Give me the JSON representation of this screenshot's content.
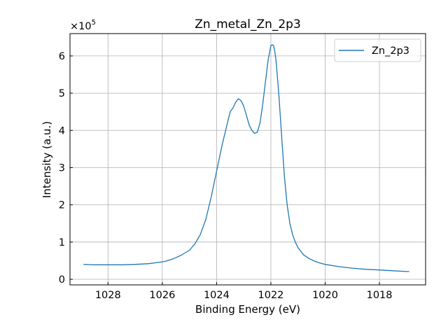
{
  "chart_data": {
    "type": "line",
    "title": "Zn_metal_Zn_2p3",
    "xlabel": "Binding Energy (eV)",
    "ylabel": "Intensity (a.u.)",
    "y_offset_label": "×10",
    "y_offset_exponent": "5",
    "xlim": [
      1029.4,
      1016.3
    ],
    "ylim": [
      -0.15,
      6.6
    ],
    "x_reversed": true,
    "grid": true,
    "legend_position": "top-right",
    "x_ticks": [
      1028,
      1026,
      1024,
      1022,
      1020,
      1018
    ],
    "y_ticks": [
      0,
      1,
      2,
      3,
      4,
      5,
      6
    ],
    "series": [
      {
        "name": "Zn_2p3",
        "color": "#1f77b4",
        "x": [
          1028.9,
          1028.5,
          1028.0,
          1027.5,
          1027.0,
          1026.5,
          1026.2,
          1025.9,
          1025.6,
          1025.3,
          1025.0,
          1024.8,
          1024.6,
          1024.4,
          1024.2,
          1024.0,
          1023.8,
          1023.6,
          1023.5,
          1023.4,
          1023.3,
          1023.2,
          1023.1,
          1023.0,
          1022.9,
          1022.8,
          1022.7,
          1022.6,
          1022.5,
          1022.4,
          1022.3,
          1022.2,
          1022.1,
          1022.0,
          1021.95,
          1021.9,
          1021.85,
          1021.8,
          1021.7,
          1021.6,
          1021.5,
          1021.4,
          1021.3,
          1021.2,
          1021.1,
          1021.0,
          1020.8,
          1020.6,
          1020.4,
          1020.2,
          1020.0,
          1019.5,
          1019.0,
          1018.5,
          1018.0,
          1017.5,
          1017.0,
          1016.9
        ],
        "y": [
          0.4,
          0.39,
          0.39,
          0.39,
          0.4,
          0.42,
          0.45,
          0.48,
          0.55,
          0.65,
          0.78,
          0.95,
          1.2,
          1.6,
          2.2,
          2.9,
          3.6,
          4.2,
          4.5,
          4.6,
          4.75,
          4.85,
          4.8,
          4.65,
          4.4,
          4.15,
          4.0,
          3.92,
          3.95,
          4.2,
          4.7,
          5.3,
          5.9,
          6.28,
          6.3,
          6.28,
          6.1,
          5.8,
          4.9,
          3.8,
          2.75,
          2.0,
          1.5,
          1.2,
          1.0,
          0.85,
          0.66,
          0.56,
          0.49,
          0.44,
          0.4,
          0.34,
          0.3,
          0.27,
          0.25,
          0.23,
          0.21,
          0.21
        ]
      }
    ]
  }
}
